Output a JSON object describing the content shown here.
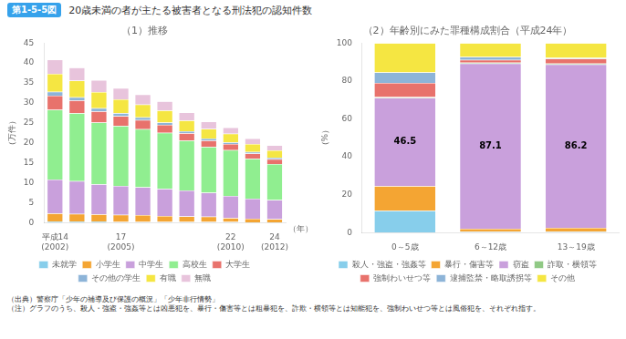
{
  "title": "20歳未満の者が主たる被害者となる刑法犯の認知件数",
  "label": "第1-5-5図",
  "notes": [
    "（出典）警察庁「少年の補導及び保護の概況」「少年非行情勢」",
    "（注）グラフのうち、殺人・強盗・強姦等とは凶悪犯を、暴行・傷害等とは粗暴犯を、詐欺・横領等とは知能犯を、強制わいせつ等とは風俗犯を、それぞれ指す。"
  ],
  "chart_data": [
    {
      "type": "bar",
      "title": "（1）推移",
      "y_label": "（万件）",
      "annotations": [
        "（年）"
      ],
      "stacked": true,
      "grid": false,
      "legend": "bottom",
      "categories": [
        "平成14\n(2002)",
        null,
        null,
        "17\n(2005)",
        null,
        null,
        null,
        null,
        "22\n(2010)",
        null,
        "24\n(2012)"
      ],
      "ylim": [
        0,
        45
      ],
      "yticks": [
        0,
        5,
        10,
        15,
        20,
        25,
        30,
        35,
        40,
        45
      ],
      "series": [
        {
          "name": "未就学",
          "color": "#87ceeb",
          "values": [
            0.3,
            0.3,
            0.3,
            0.2,
            0.2,
            0.2,
            0.2,
            0.2,
            0.2,
            0.1,
            0.1
          ]
        },
        {
          "name": "小学生",
          "color": "#f4a533",
          "values": [
            2.0,
            1.9,
            1.8,
            1.8,
            1.7,
            1.5,
            1.4,
            1.3,
            1.0,
            0.9,
            0.8
          ]
        },
        {
          "name": "中学生",
          "color": "#c9a0dc",
          "values": [
            8.5,
            8.2,
            7.5,
            7.2,
            7.0,
            6.8,
            6.5,
            6.0,
            5.5,
            5.0,
            4.8
          ]
        },
        {
          "name": "高校生",
          "color": "#90ee90",
          "values": [
            17.5,
            17.0,
            15.5,
            15.0,
            14.5,
            14.0,
            12.5,
            11.5,
            11.5,
            10.0,
            9.0
          ]
        },
        {
          "name": "大学生",
          "color": "#e8726c",
          "values": [
            3.5,
            3.2,
            2.8,
            2.5,
            2.3,
            2.0,
            1.8,
            1.6,
            1.5,
            1.3,
            1.2
          ]
        },
        {
          "name": "その他の学生",
          "color": "#8db4d8",
          "values": [
            1.0,
            0.8,
            0.8,
            0.7,
            0.7,
            0.6,
            0.5,
            0.5,
            0.4,
            0.4,
            0.4
          ]
        },
        {
          "name": "有職",
          "color": "#f5e642",
          "values": [
            4.5,
            4.2,
            4.0,
            3.5,
            3.2,
            3.0,
            2.7,
            2.4,
            2.2,
            2.0,
            1.8
          ]
        },
        {
          "name": "無職",
          "color": "#e8c4dc",
          "values": [
            3.5,
            3.2,
            3.0,
            2.8,
            2.5,
            2.3,
            2.0,
            1.8,
            1.5,
            1.4,
            1.3
          ]
        }
      ]
    },
    {
      "type": "bar",
      "title": "（2）年齢別にみた罪種構成割合（平成24年）",
      "y_label": "（%）",
      "stacked": true,
      "grid": false,
      "legend": "bottom",
      "categories": [
        "0～5歳",
        "6～12歳",
        "13～19歳"
      ],
      "ylim": [
        0,
        100
      ],
      "yticks": [
        0,
        20,
        40,
        60,
        80,
        100
      ],
      "series": [
        {
          "name": "殺人・強盗・強姦等",
          "color": "#87ceeb",
          "values": [
            11.5,
            0.5,
            0.5
          ]
        },
        {
          "name": "暴行・傷害等",
          "color": "#f4a533",
          "values": [
            13.0,
            1.5,
            2.0
          ]
        },
        {
          "name": "窃盗",
          "color": "#c9a0dc",
          "values": [
            46.5,
            87.1,
            86.2
          ],
          "data_labels": true
        },
        {
          "name": "詐取・横領等",
          "color": "#90c985",
          "values": [
            0.5,
            0.5,
            0.5
          ]
        },
        {
          "name": "強制わいせつ等",
          "color": "#e8726c",
          "values": [
            7.5,
            1.5,
            2.5
          ]
        },
        {
          "name": "逮捕監禁・略取誘拐等",
          "color": "#8db4d8",
          "values": [
            5.5,
            1.5,
            0.5
          ]
        },
        {
          "name": "その他",
          "color": "#f5e642",
          "values": [
            15.5,
            7.4,
            7.8
          ]
        }
      ]
    }
  ]
}
